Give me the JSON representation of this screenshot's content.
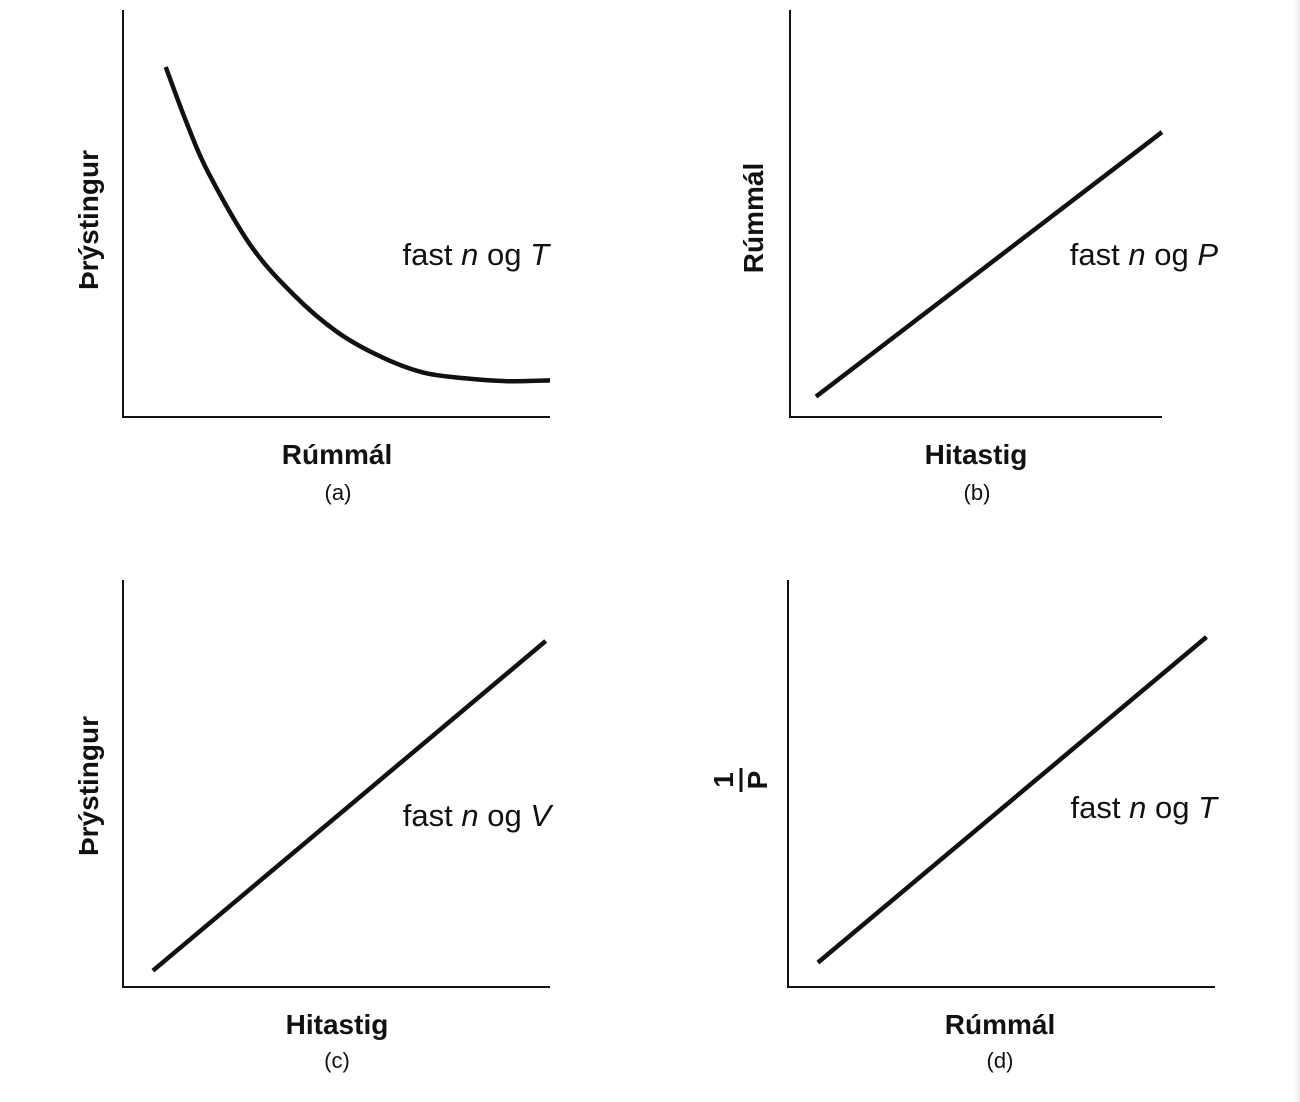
{
  "chart_data": [
    {
      "type": "line",
      "caption": "(a)",
      "xlabel": "Rúmmál",
      "ylabel": "Þrýstingur",
      "annotation": {
        "text": "fast",
        "var1": "n",
        "conj": "og",
        "var2": "T"
      },
      "grid": false,
      "series": [
        {
          "x": [
            0.1,
            0.15,
            0.2,
            0.3,
            0.4,
            0.5,
            0.6,
            0.7,
            0.8,
            0.9,
            1.0
          ],
          "y": [
            0.86,
            0.72,
            0.6,
            0.42,
            0.3,
            0.21,
            0.15,
            0.11,
            0.095,
            0.088,
            0.09
          ]
        }
      ]
    },
    {
      "type": "line",
      "caption": "(b)",
      "xlabel": "Hitastig",
      "ylabel": "Rúmmál",
      "annotation": {
        "text": "fast",
        "var1": "n",
        "conj": "og",
        "var2": "P"
      },
      "grid": false,
      "series": [
        {
          "x": [
            0.07,
            1.0
          ],
          "y": [
            0.05,
            0.7
          ]
        }
      ]
    },
    {
      "type": "line",
      "caption": "(c)",
      "xlabel": "Hitastig",
      "ylabel": "Þrýstingur",
      "annotation": {
        "text": "fast",
        "var1": "n",
        "conj": "og",
        "var2": "V"
      },
      "grid": false,
      "series": [
        {
          "x": [
            0.07,
            0.99
          ],
          "y": [
            0.04,
            0.85
          ]
        }
      ]
    },
    {
      "type": "line",
      "caption": "(d)",
      "xlabel": "Rúmmál",
      "ylabel_fraction": {
        "numerator": "1",
        "denominator": "P"
      },
      "annotation": {
        "text": "fast",
        "var1": "n",
        "conj": "og",
        "var2": "T"
      },
      "grid": false,
      "series": [
        {
          "x": [
            0.07,
            0.98
          ],
          "y": [
            0.06,
            0.86
          ]
        }
      ]
    }
  ]
}
